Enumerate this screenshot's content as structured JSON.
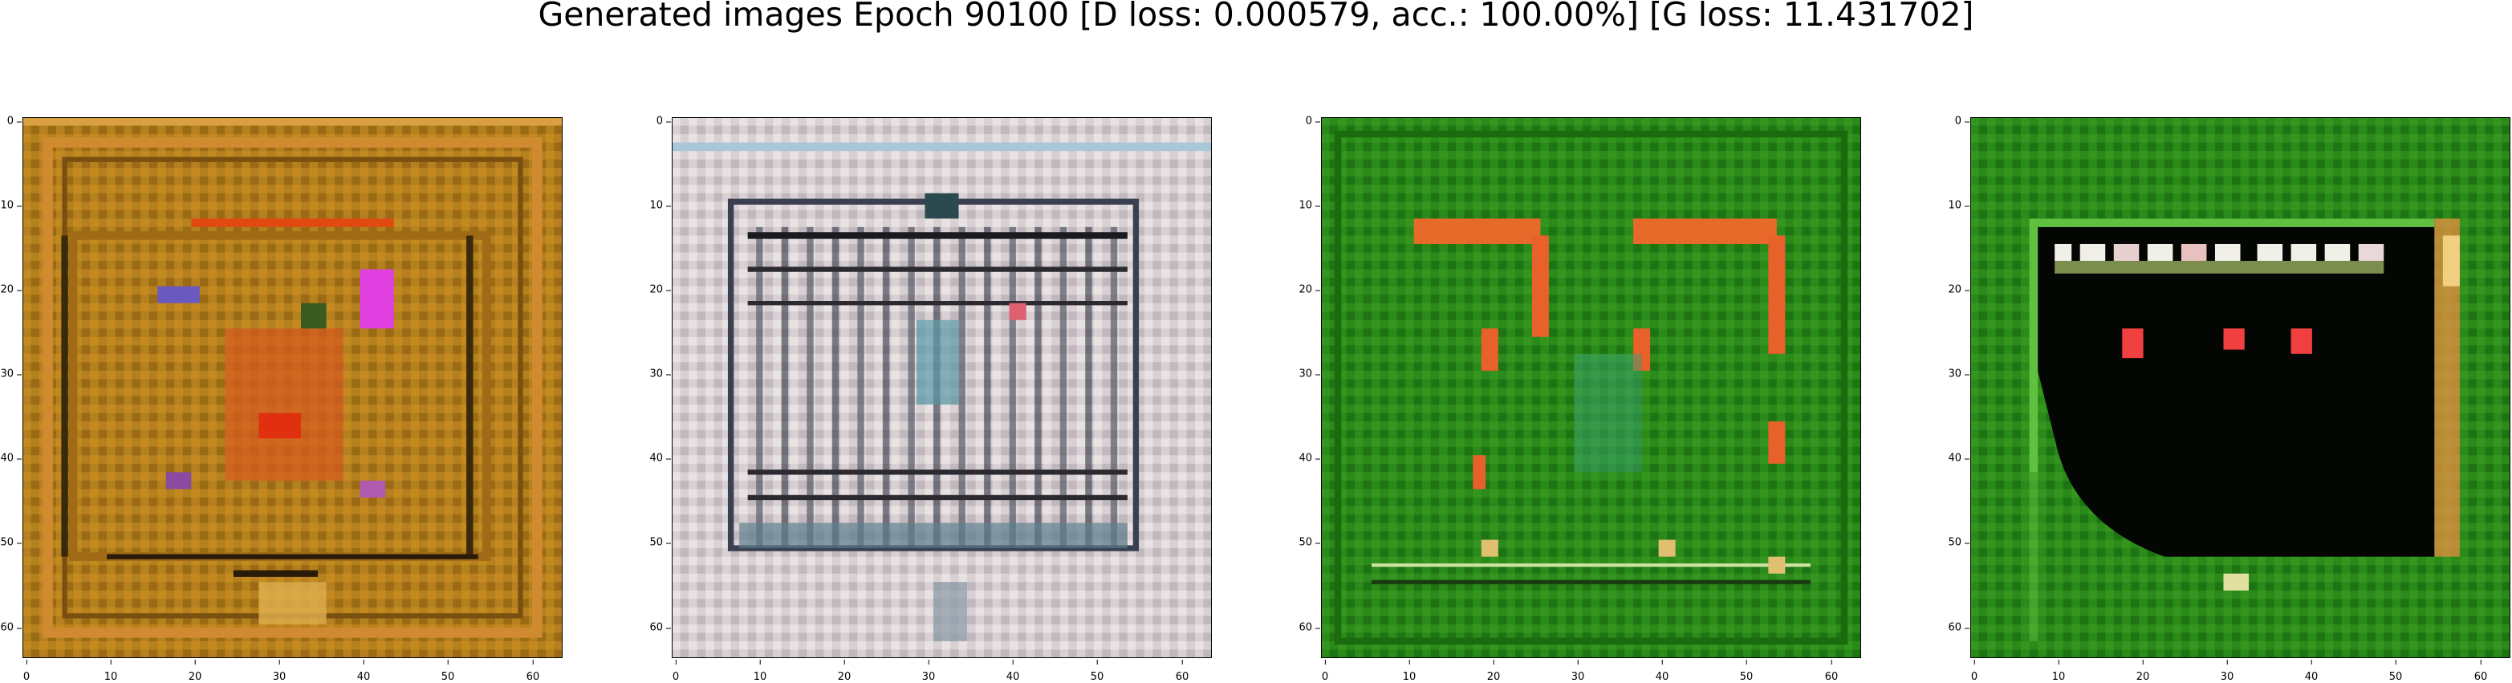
{
  "figure": {
    "title": "Generated images Epoch 90100 [D loss: 0.000579, acc.: 100.00%] [G loss: 11.431702]"
  },
  "axes": {
    "x_ticks": [
      "0",
      "10",
      "20",
      "30",
      "40",
      "50",
      "60"
    ],
    "y_ticks": [
      "0",
      "10",
      "20",
      "30",
      "40",
      "50",
      "60"
    ],
    "range": [
      0,
      64
    ]
  },
  "panels": [
    {
      "description": "orange-brown noisy pattern",
      "base_color": "#b07a18"
    },
    {
      "description": "gray-white grid pattern",
      "base_color": "#d8d0d0"
    },
    {
      "description": "green pattern with red marks",
      "base_color": "#2a8a1a"
    },
    {
      "description": "green with black rectangle",
      "base_color": "#2a8a1a"
    }
  ]
}
